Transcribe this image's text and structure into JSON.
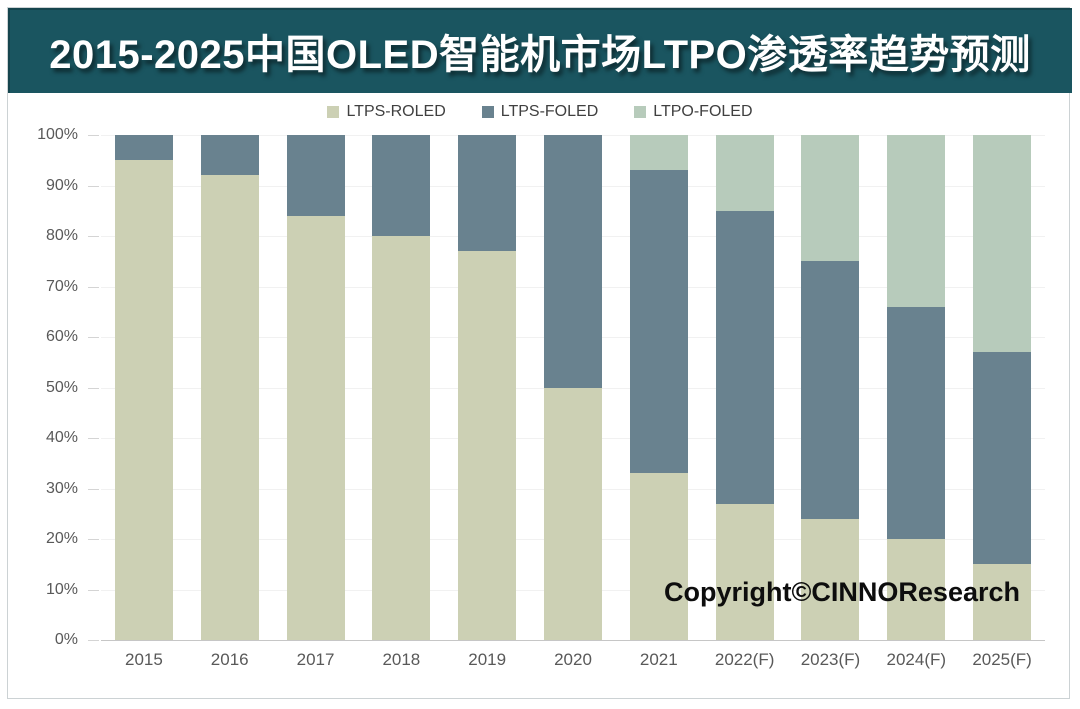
{
  "header": {
    "background_color": "#1A5560"
  },
  "chart_data": {
    "type": "bar",
    "stacked": true,
    "title": "2015-2025中国OLED智能机市场LTPO渗透率趋势预测",
    "categories": [
      "2015",
      "2016",
      "2017",
      "2018",
      "2019",
      "2020",
      "2021",
      "2022(F)",
      "2023(F)",
      "2024(F)",
      "2025(F)"
    ],
    "series": [
      {
        "name": "LTPS-ROLED",
        "color": "#CCD0B4",
        "values": [
          95,
          92,
          84,
          80,
          77,
          50,
          33,
          27,
          24,
          20,
          15
        ]
      },
      {
        "name": "LTPS-FOLED",
        "color": "#69828F",
        "values": [
          5,
          8,
          16,
          20,
          23,
          50,
          60,
          58,
          51,
          46,
          42
        ]
      },
      {
        "name": "LTPO-FOLED",
        "color": "#B7CBBB",
        "values": [
          0,
          0,
          0,
          0,
          0,
          0,
          7,
          15,
          25,
          34,
          43
        ]
      }
    ],
    "xlabel": "",
    "ylabel": "",
    "ylim": [
      0,
      100
    ],
    "ytick_step": 10,
    "ytick_labels": [
      "0%",
      "10%",
      "20%",
      "30%",
      "40%",
      "50%",
      "60%",
      "70%",
      "80%",
      "90%",
      "100%"
    ],
    "legend_position": "top",
    "grid": true,
    "annotation": "Copyright©CINNOResearch"
  }
}
